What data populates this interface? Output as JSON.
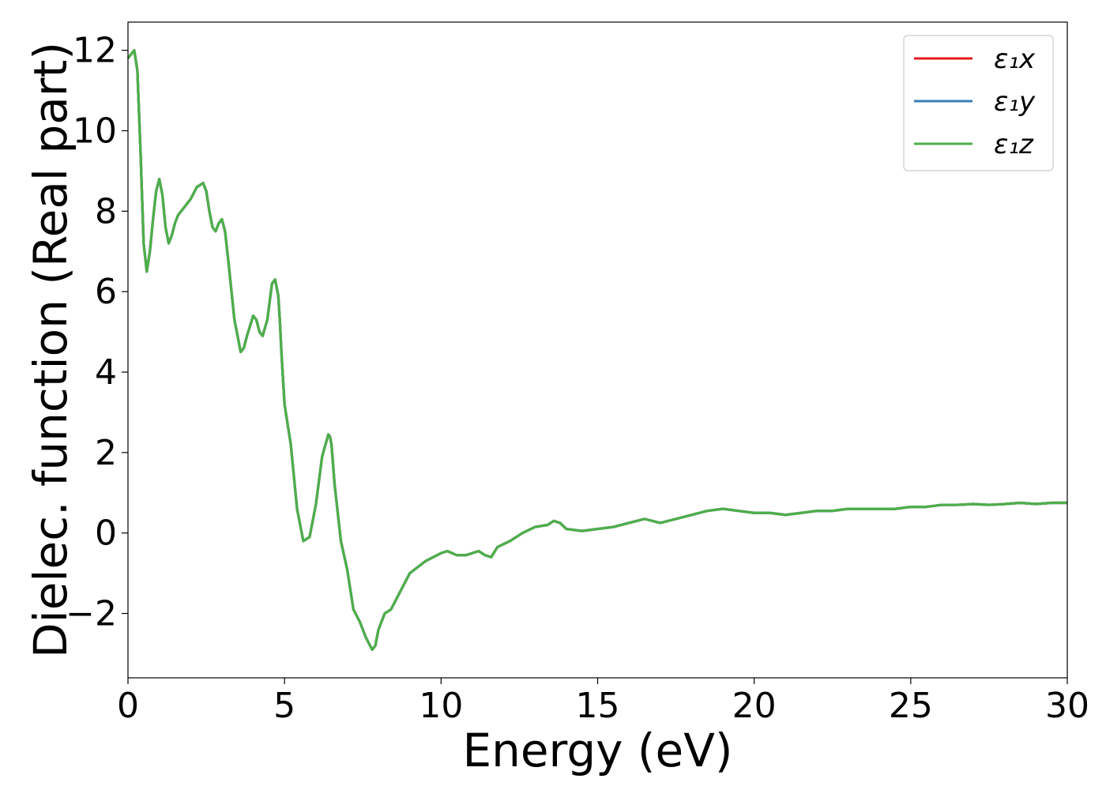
{
  "chart_data": {
    "type": "line",
    "title": "",
    "xlabel": "Energy (eV)",
    "ylabel": "Dielec. function (Real part)",
    "xlim": [
      0,
      30
    ],
    "ylim": [
      -3.6,
      12.7
    ],
    "xticks": [
      0,
      5,
      10,
      15,
      20,
      25,
      30
    ],
    "yticks": [
      -2,
      0,
      2,
      4,
      6,
      8,
      10,
      12
    ],
    "xtick_labels": [
      "0",
      "5",
      "10",
      "15",
      "20",
      "25",
      "30"
    ],
    "ytick_labels": [
      "−2",
      "0",
      "2",
      "4",
      "6",
      "8",
      "10",
      "12"
    ],
    "grid": false,
    "legend_position": "top-right",
    "series": [
      {
        "name": "ε₁x",
        "color": "#e41a1c",
        "x": [
          0,
          0.1,
          0.2,
          0.3,
          0.4,
          0.5,
          0.6,
          0.7,
          0.8,
          0.9,
          1.0,
          1.1,
          1.2,
          1.3,
          1.4,
          1.5,
          1.6,
          1.8,
          2.0,
          2.2,
          2.4,
          2.5,
          2.6,
          2.7,
          2.8,
          2.9,
          3.0,
          3.1,
          3.2,
          3.4,
          3.6,
          3.7,
          3.8,
          4.0,
          4.1,
          4.2,
          4.3,
          4.45,
          4.6,
          4.7,
          4.8,
          4.85,
          4.9,
          5.0,
          5.1,
          5.2,
          5.4,
          5.6,
          5.8,
          6.0,
          6.2,
          6.4,
          6.45,
          6.5,
          6.6,
          6.8,
          7.0,
          7.2,
          7.4,
          7.6,
          7.8,
          7.9,
          8.0,
          8.2,
          8.4,
          8.6,
          8.8,
          9.0,
          9.5,
          10.0,
          10.2,
          10.5,
          10.8,
          11.0,
          11.2,
          11.4,
          11.6,
          11.8,
          12.2,
          12.6,
          13.0,
          13.4,
          13.6,
          13.8,
          14.0,
          14.5,
          15.0,
          15.5,
          16.0,
          16.5,
          17.0,
          17.5,
          18.0,
          18.5,
          19.0,
          19.5,
          20.0,
          20.5,
          21.0,
          21.5,
          22.0,
          22.5,
          23.0,
          23.5,
          24.0,
          24.5,
          25.0,
          25.5,
          26.0,
          26.5,
          27.0,
          27.5,
          28.0,
          28.5,
          29.0,
          29.5,
          30.0
        ],
        "values": [
          11.8,
          11.9,
          12.0,
          11.5,
          9.5,
          7.2,
          6.5,
          7.0,
          7.8,
          8.5,
          8.8,
          8.4,
          7.6,
          7.2,
          7.4,
          7.7,
          7.9,
          8.1,
          8.3,
          8.6,
          8.7,
          8.5,
          8.0,
          7.6,
          7.5,
          7.7,
          7.8,
          7.5,
          6.8,
          5.3,
          4.5,
          4.6,
          4.9,
          5.4,
          5.3,
          5.0,
          4.9,
          5.3,
          6.2,
          6.3,
          5.9,
          5.3,
          4.5,
          3.2,
          2.7,
          2.2,
          0.6,
          -0.2,
          -0.1,
          0.7,
          1.9,
          2.45,
          2.4,
          2.2,
          1.2,
          -0.2,
          -0.9,
          -1.9,
          -2.2,
          -2.6,
          -2.9,
          -2.8,
          -2.4,
          -2.0,
          -1.9,
          -1.6,
          -1.3,
          -1.0,
          -0.7,
          -0.5,
          -0.45,
          -0.55,
          -0.55,
          -0.5,
          -0.45,
          -0.55,
          -0.6,
          -0.35,
          -0.2,
          0.0,
          0.15,
          0.2,
          0.3,
          0.25,
          0.1,
          0.05,
          0.1,
          0.15,
          0.25,
          0.35,
          0.25,
          0.35,
          0.45,
          0.55,
          0.6,
          0.55,
          0.5,
          0.5,
          0.45,
          0.5,
          0.55,
          0.55,
          0.6,
          0.6,
          0.6,
          0.6,
          0.65,
          0.65,
          0.7,
          0.7,
          0.72,
          0.7,
          0.72,
          0.75,
          0.72,
          0.75,
          0.75
        ]
      },
      {
        "name": "ε₁y",
        "color": "#377eb8",
        "x": [
          0,
          0.1,
          0.2,
          0.3,
          0.4,
          0.5,
          0.6,
          0.7,
          0.8,
          0.9,
          1.0,
          1.1,
          1.2,
          1.3,
          1.4,
          1.5,
          1.6,
          1.8,
          2.0,
          2.2,
          2.4,
          2.5,
          2.6,
          2.7,
          2.8,
          2.9,
          3.0,
          3.1,
          3.2,
          3.4,
          3.6,
          3.7,
          3.8,
          4.0,
          4.1,
          4.2,
          4.3,
          4.45,
          4.6,
          4.7,
          4.8,
          4.85,
          4.9,
          5.0,
          5.1,
          5.2,
          5.4,
          5.6,
          5.8,
          6.0,
          6.2,
          6.4,
          6.45,
          6.5,
          6.6,
          6.8,
          7.0,
          7.2,
          7.4,
          7.6,
          7.8,
          7.9,
          8.0,
          8.2,
          8.4,
          8.6,
          8.8,
          9.0,
          9.5,
          10.0,
          10.2,
          10.5,
          10.8,
          11.0,
          11.2,
          11.4,
          11.6,
          11.8,
          12.2,
          12.6,
          13.0,
          13.4,
          13.6,
          13.8,
          14.0,
          14.5,
          15.0,
          15.5,
          16.0,
          16.5,
          17.0,
          17.5,
          18.0,
          18.5,
          19.0,
          19.5,
          20.0,
          20.5,
          21.0,
          21.5,
          22.0,
          22.5,
          23.0,
          23.5,
          24.0,
          24.5,
          25.0,
          25.5,
          26.0,
          26.5,
          27.0,
          27.5,
          28.0,
          28.5,
          29.0,
          29.5,
          30.0
        ],
        "values": [
          11.8,
          11.9,
          12.0,
          11.5,
          9.5,
          7.2,
          6.5,
          7.0,
          7.8,
          8.5,
          8.8,
          8.4,
          7.6,
          7.2,
          7.4,
          7.7,
          7.9,
          8.1,
          8.3,
          8.6,
          8.7,
          8.5,
          8.0,
          7.6,
          7.5,
          7.7,
          7.8,
          7.5,
          6.8,
          5.3,
          4.5,
          4.6,
          4.9,
          5.4,
          5.3,
          5.0,
          4.9,
          5.3,
          6.2,
          6.3,
          5.9,
          5.3,
          4.5,
          3.2,
          2.7,
          2.2,
          0.6,
          -0.2,
          -0.1,
          0.7,
          1.9,
          2.45,
          2.4,
          2.2,
          1.2,
          -0.2,
          -0.9,
          -1.9,
          -2.2,
          -2.6,
          -2.9,
          -2.8,
          -2.4,
          -2.0,
          -1.9,
          -1.6,
          -1.3,
          -1.0,
          -0.7,
          -0.5,
          -0.45,
          -0.55,
          -0.55,
          -0.5,
          -0.45,
          -0.55,
          -0.6,
          -0.35,
          -0.2,
          0.0,
          0.15,
          0.2,
          0.3,
          0.25,
          0.1,
          0.05,
          0.1,
          0.15,
          0.25,
          0.35,
          0.25,
          0.35,
          0.45,
          0.55,
          0.6,
          0.55,
          0.5,
          0.5,
          0.45,
          0.5,
          0.55,
          0.55,
          0.6,
          0.6,
          0.6,
          0.6,
          0.65,
          0.65,
          0.7,
          0.7,
          0.72,
          0.7,
          0.72,
          0.75,
          0.72,
          0.75,
          0.75
        ]
      },
      {
        "name": "ε₁z",
        "color": "#4daf4a",
        "x": [
          0,
          0.1,
          0.2,
          0.3,
          0.4,
          0.5,
          0.6,
          0.7,
          0.8,
          0.9,
          1.0,
          1.1,
          1.2,
          1.3,
          1.4,
          1.5,
          1.6,
          1.8,
          2.0,
          2.2,
          2.4,
          2.5,
          2.6,
          2.7,
          2.8,
          2.9,
          3.0,
          3.1,
          3.2,
          3.4,
          3.6,
          3.7,
          3.8,
          4.0,
          4.1,
          4.2,
          4.3,
          4.45,
          4.6,
          4.7,
          4.8,
          4.85,
          4.9,
          5.0,
          5.1,
          5.2,
          5.4,
          5.6,
          5.8,
          6.0,
          6.2,
          6.4,
          6.45,
          6.5,
          6.6,
          6.8,
          7.0,
          7.2,
          7.4,
          7.6,
          7.8,
          7.9,
          8.0,
          8.2,
          8.4,
          8.6,
          8.8,
          9.0,
          9.5,
          10.0,
          10.2,
          10.5,
          10.8,
          11.0,
          11.2,
          11.4,
          11.6,
          11.8,
          12.2,
          12.6,
          13.0,
          13.4,
          13.6,
          13.8,
          14.0,
          14.5,
          15.0,
          15.5,
          16.0,
          16.5,
          17.0,
          17.5,
          18.0,
          18.5,
          19.0,
          19.5,
          20.0,
          20.5,
          21.0,
          21.5,
          22.0,
          22.5,
          23.0,
          23.5,
          24.0,
          24.5,
          25.0,
          25.5,
          26.0,
          26.5,
          27.0,
          27.5,
          28.0,
          28.5,
          29.0,
          29.5,
          30.0
        ],
        "values": [
          11.8,
          11.9,
          12.0,
          11.5,
          9.5,
          7.2,
          6.5,
          7.0,
          7.8,
          8.5,
          8.8,
          8.4,
          7.6,
          7.2,
          7.4,
          7.7,
          7.9,
          8.1,
          8.3,
          8.6,
          8.7,
          8.5,
          8.0,
          7.6,
          7.5,
          7.7,
          7.8,
          7.5,
          6.8,
          5.3,
          4.5,
          4.6,
          4.9,
          5.4,
          5.3,
          5.0,
          4.9,
          5.3,
          6.2,
          6.3,
          5.9,
          5.3,
          4.5,
          3.2,
          2.7,
          2.2,
          0.6,
          -0.2,
          -0.1,
          0.7,
          1.9,
          2.45,
          2.4,
          2.2,
          1.2,
          -0.2,
          -0.9,
          -1.9,
          -2.2,
          -2.6,
          -2.9,
          -2.8,
          -2.4,
          -2.0,
          -1.9,
          -1.6,
          -1.3,
          -1.0,
          -0.7,
          -0.5,
          -0.45,
          -0.55,
          -0.55,
          -0.5,
          -0.45,
          -0.55,
          -0.6,
          -0.35,
          -0.2,
          0.0,
          0.15,
          0.2,
          0.3,
          0.25,
          0.1,
          0.05,
          0.1,
          0.15,
          0.25,
          0.35,
          0.25,
          0.35,
          0.45,
          0.55,
          0.6,
          0.55,
          0.5,
          0.5,
          0.45,
          0.5,
          0.55,
          0.55,
          0.6,
          0.6,
          0.6,
          0.6,
          0.65,
          0.65,
          0.7,
          0.7,
          0.72,
          0.7,
          0.72,
          0.75,
          0.72,
          0.75,
          0.75
        ]
      }
    ]
  }
}
